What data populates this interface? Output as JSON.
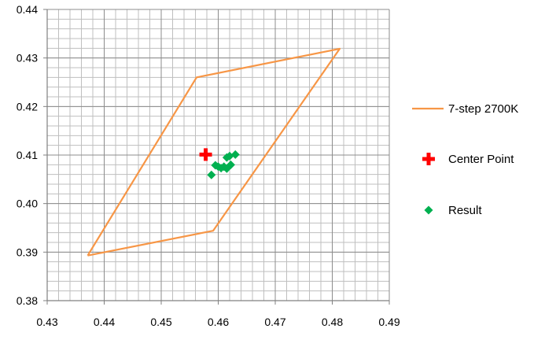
{
  "chart_data": {
    "type": "scatter",
    "xlim": [
      0.43,
      0.49
    ],
    "ylim": [
      0.38,
      0.44
    ],
    "x_ticks": [
      "0.43",
      "0.44",
      "0.45",
      "0.46",
      "0.47",
      "0.48",
      "0.49"
    ],
    "y_ticks": [
      "0.38",
      "0.39",
      "0.40",
      "0.41",
      "0.42",
      "0.43",
      "0.44"
    ],
    "x_tick_values": [
      0.43,
      0.44,
      0.45,
      0.46,
      0.47,
      0.48,
      0.49
    ],
    "y_tick_values": [
      0.38,
      0.39,
      0.4,
      0.41,
      0.42,
      0.43,
      0.44
    ],
    "grid": true,
    "minor_grid_step_x": 0.002,
    "minor_grid_step_y": 0.002,
    "legend_position": "right",
    "series": [
      {
        "name": "7-step 2700K",
        "kind": "line",
        "marker": "none",
        "color": "#F79646",
        "points": [
          [
            0.4371,
            0.3893
          ],
          [
            0.4591,
            0.3944
          ],
          [
            0.4813,
            0.4319
          ],
          [
            0.4562,
            0.426
          ],
          [
            0.4371,
            0.3893
          ]
        ]
      },
      {
        "name": "Center Point",
        "kind": "point",
        "marker": "plus",
        "color": "#FF0000",
        "points": [
          [
            0.4578,
            0.4101
          ]
        ]
      },
      {
        "name": "Result",
        "kind": "point",
        "marker": "diamond",
        "color": "#00B050",
        "points": [
          [
            0.4588,
            0.4059
          ],
          [
            0.4595,
            0.4079
          ],
          [
            0.46,
            0.4076
          ],
          [
            0.4605,
            0.4073
          ],
          [
            0.461,
            0.4076
          ],
          [
            0.4615,
            0.4072
          ],
          [
            0.4615,
            0.4095
          ],
          [
            0.462,
            0.4098
          ],
          [
            0.4622,
            0.408
          ],
          [
            0.463,
            0.4101
          ]
        ]
      }
    ]
  }
}
